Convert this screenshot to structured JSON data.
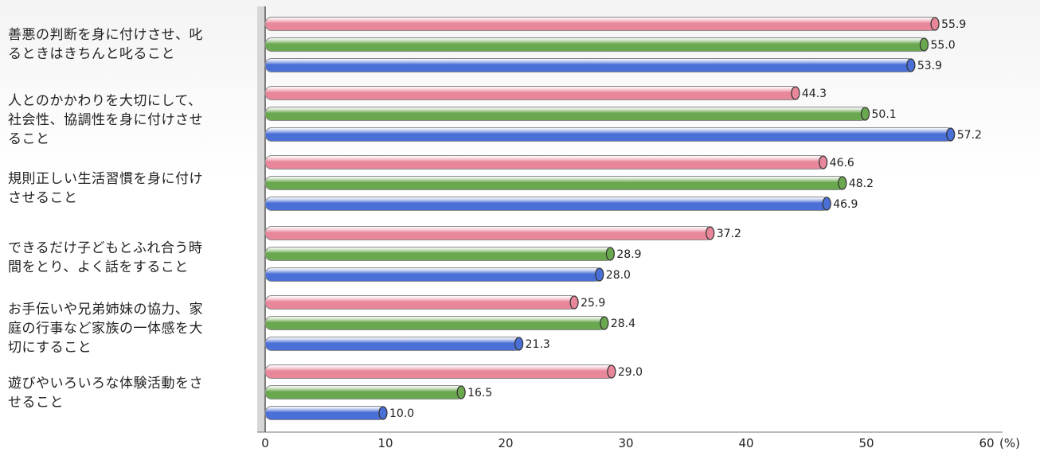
{
  "chart_data": {
    "type": "bar",
    "orientation": "horizontal",
    "categories": [
      "善悪の判断を身に付けさせ、叱るときはきちんと叱ること",
      "人とのかかわりを大切にして、社会性、協調性を身に付けさせること",
      "規則正しい生活習慣を身に付けさせること",
      "できるだけ子どもとふれ合う時間をとり、よく話をすること",
      "お手伝いや兄弟姉妹の協力、家庭の行事など家族の一体感を大切にすること",
      "遊びやいろいろな体験活動をさせること"
    ],
    "category_lines": [
      [
        "善悪の判断を身に付けさせ、叱",
        "るときはきちんと叱ること"
      ],
      [
        "人とのかかわりを大切にして、",
        "社会性、協調性を身に付けさせ",
        "ること"
      ],
      [
        "規則正しい生活習慣を身に付け",
        "させること"
      ],
      [
        "できるだけ子どもとふれ合う時",
        "間をとり、よく話をすること"
      ],
      [
        "お手伝いや兄弟姉妹の協力、家",
        "庭の行事など家族の一体感を大",
        "切にすること"
      ],
      [
        "遊びやいろいろな体験活動をさ",
        "せること"
      ]
    ],
    "series": [
      {
        "color": "#e8879a",
        "values": [
          55.9,
          44.3,
          46.6,
          37.2,
          25.9,
          29.0
        ]
      },
      {
        "color": "#6aa84f",
        "values": [
          55.0,
          50.1,
          48.2,
          28.9,
          28.4,
          16.5
        ]
      },
      {
        "color": "#4a6fd6",
        "values": [
          53.9,
          57.2,
          46.9,
          28.0,
          21.3,
          10.0
        ]
      }
    ],
    "value_labels": [
      [
        "55.9",
        "55.0",
        "53.9"
      ],
      [
        "44.3",
        "50.1",
        "57.2"
      ],
      [
        "46.6",
        "48.2",
        "46.9"
      ],
      [
        "37.2",
        "28.9",
        "28.0"
      ],
      [
        "25.9",
        "28.4",
        "21.3"
      ],
      [
        "29.0",
        "16.5",
        "10.0"
      ]
    ],
    "x_ticks": [
      "0",
      "10",
      "20",
      "30",
      "40",
      "50",
      "60"
    ],
    "x_unit": "(%)",
    "xlim": [
      0,
      60
    ],
    "grid": false,
    "legend": "none"
  }
}
